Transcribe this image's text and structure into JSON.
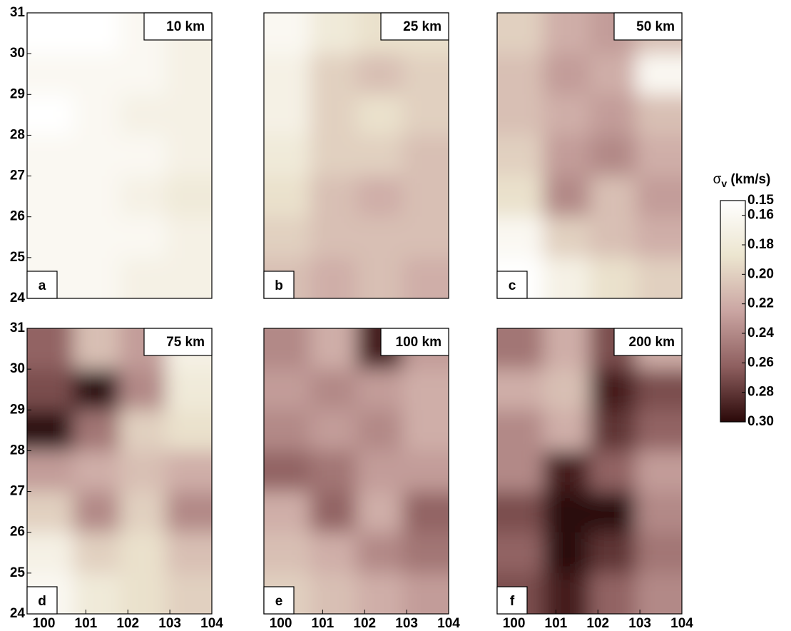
{
  "chart_data": [
    {
      "type": "heatmap",
      "title": "10 km",
      "panel": "a",
      "xlim": [
        99.6,
        104
      ],
      "ylim": [
        24,
        31
      ],
      "yticks": [
        24,
        25,
        26,
        27,
        28,
        29,
        30,
        31
      ],
      "values": [
        [
          0.15,
          0.15,
          0.16,
          0.17
        ],
        [
          0.16,
          0.16,
          0.16,
          0.17
        ],
        [
          0.15,
          0.16,
          0.17,
          0.17
        ],
        [
          0.16,
          0.16,
          0.16,
          0.17
        ],
        [
          0.16,
          0.16,
          0.17,
          0.18
        ],
        [
          0.16,
          0.16,
          0.16,
          0.17
        ],
        [
          0.16,
          0.16,
          0.17,
          0.17
        ]
      ]
    },
    {
      "type": "heatmap",
      "title": "25 km",
      "panel": "b",
      "xlim": [
        99.6,
        104
      ],
      "ylim": [
        24,
        31
      ],
      "values": [
        [
          0.16,
          0.18,
          0.19,
          0.19
        ],
        [
          0.17,
          0.2,
          0.21,
          0.2
        ],
        [
          0.17,
          0.2,
          0.19,
          0.2
        ],
        [
          0.18,
          0.2,
          0.2,
          0.21
        ],
        [
          0.19,
          0.21,
          0.22,
          0.21
        ],
        [
          0.2,
          0.21,
          0.21,
          0.21
        ],
        [
          0.21,
          0.22,
          0.21,
          0.22
        ]
      ]
    },
    {
      "type": "heatmap",
      "title": "50 km",
      "panel": "c",
      "xlim": [
        99.6,
        104
      ],
      "ylim": [
        24,
        31
      ],
      "values": [
        [
          0.2,
          0.22,
          0.23,
          0.21
        ],
        [
          0.21,
          0.23,
          0.22,
          0.16
        ],
        [
          0.21,
          0.22,
          0.23,
          0.21
        ],
        [
          0.2,
          0.23,
          0.24,
          0.22
        ],
        [
          0.19,
          0.24,
          0.21,
          0.23
        ],
        [
          0.16,
          0.2,
          0.21,
          0.22
        ],
        [
          0.15,
          0.17,
          0.19,
          0.2
        ]
      ]
    },
    {
      "type": "heatmap",
      "title": "75 km",
      "panel": "d",
      "xlim": [
        99.6,
        104
      ],
      "ylim": [
        24,
        31
      ],
      "xticks": [
        100,
        101,
        102,
        103,
        104
      ],
      "yticks": [
        24,
        25,
        26,
        27,
        28,
        29,
        30,
        31
      ],
      "values": [
        [
          0.26,
          0.21,
          0.23,
          0.17
        ],
        [
          0.27,
          0.3,
          0.24,
          0.18
        ],
        [
          0.3,
          0.25,
          0.2,
          0.19
        ],
        [
          0.23,
          0.22,
          0.21,
          0.22
        ],
        [
          0.2,
          0.24,
          0.2,
          0.24
        ],
        [
          0.17,
          0.2,
          0.19,
          0.21
        ],
        [
          0.16,
          0.18,
          0.19,
          0.2
        ]
      ]
    },
    {
      "type": "heatmap",
      "title": "100 km",
      "panel": "e",
      "xlim": [
        99.6,
        104
      ],
      "ylim": [
        24,
        31
      ],
      "xticks": [
        100,
        101,
        102,
        103,
        104
      ],
      "values": [
        [
          0.24,
          0.22,
          0.29,
          0.23
        ],
        [
          0.23,
          0.24,
          0.23,
          0.22
        ],
        [
          0.24,
          0.23,
          0.24,
          0.22
        ],
        [
          0.26,
          0.25,
          0.23,
          0.23
        ],
        [
          0.22,
          0.26,
          0.22,
          0.26
        ],
        [
          0.21,
          0.22,
          0.24,
          0.25
        ],
        [
          0.2,
          0.21,
          0.22,
          0.23
        ]
      ]
    },
    {
      "type": "heatmap",
      "title": "200 km",
      "panel": "f",
      "xlim": [
        99.6,
        104
      ],
      "ylim": [
        24,
        31
      ],
      "xticks": [
        100,
        101,
        102,
        103,
        104
      ],
      "values": [
        [
          0.25,
          0.22,
          0.27,
          0.22
        ],
        [
          0.22,
          0.21,
          0.29,
          0.27
        ],
        [
          0.24,
          0.22,
          0.28,
          0.26
        ],
        [
          0.24,
          0.29,
          0.26,
          0.23
        ],
        [
          0.27,
          0.3,
          0.3,
          0.24
        ],
        [
          0.26,
          0.3,
          0.28,
          0.25
        ],
        [
          0.27,
          0.29,
          0.26,
          0.24
        ]
      ]
    }
  ],
  "colorbar": {
    "symbol": "σ",
    "subscript": "v",
    "unit": "(km/s)",
    "lim": [
      0.15,
      0.3
    ],
    "ticks": [
      0.15,
      0.16,
      0.18,
      {
        "value": 0.2,
        "label": "0.20"
      },
      0.22,
      0.24,
      0.26,
      0.28,
      {
        "value": 0.3,
        "label": "0.30"
      }
    ],
    "colormap": [
      "#ffffff",
      "#ece5cf",
      "#caa5a2",
      "#8e5f5f",
      "#2a0808"
    ]
  }
}
